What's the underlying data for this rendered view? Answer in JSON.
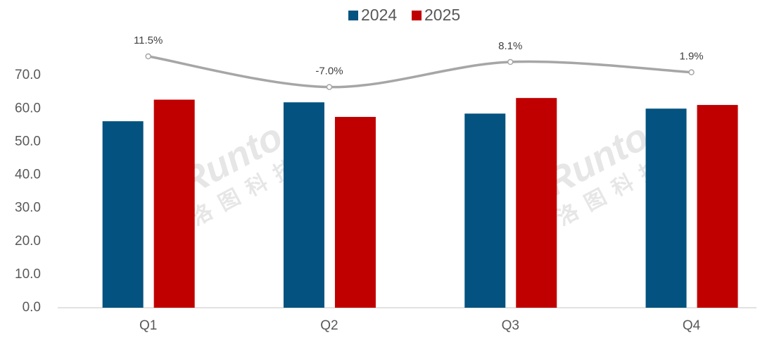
{
  "chart_data": {
    "type": "bar",
    "categories": [
      "Q1",
      "Q2",
      "Q3",
      "Q4"
    ],
    "series": [
      {
        "name": "2024",
        "color": "#03527f",
        "values": [
          56.2,
          61.9,
          58.5,
          60.0
        ]
      },
      {
        "name": "2025",
        "color": "#c00000",
        "values": [
          62.7,
          57.5,
          63.2,
          61.1
        ]
      }
    ],
    "line_series": {
      "color": "#a6a6a6",
      "axis": "y2",
      "values": [
        11.5,
        -7.0,
        8.1,
        1.9
      ],
      "value_labels": [
        "11.5%",
        "-7.0%",
        "8.1%",
        "1.9%"
      ]
    },
    "ylim": [
      0,
      80
    ],
    "yticks": [
      {
        "value": 0,
        "label": "0.0"
      },
      {
        "value": 10,
        "label": "10.0"
      },
      {
        "value": 20,
        "label": "20.0"
      },
      {
        "value": 30,
        "label": "30.0"
      },
      {
        "value": 40,
        "label": "40.0"
      },
      {
        "value": 50,
        "label": "50.0"
      },
      {
        "value": 60,
        "label": "60.0"
      },
      {
        "value": 70,
        "label": "70.0"
      }
    ],
    "y2lim": [
      -140,
      20
    ],
    "legend": "top",
    "grid": false,
    "watermark": [
      "Runto",
      "洛图科技"
    ]
  }
}
